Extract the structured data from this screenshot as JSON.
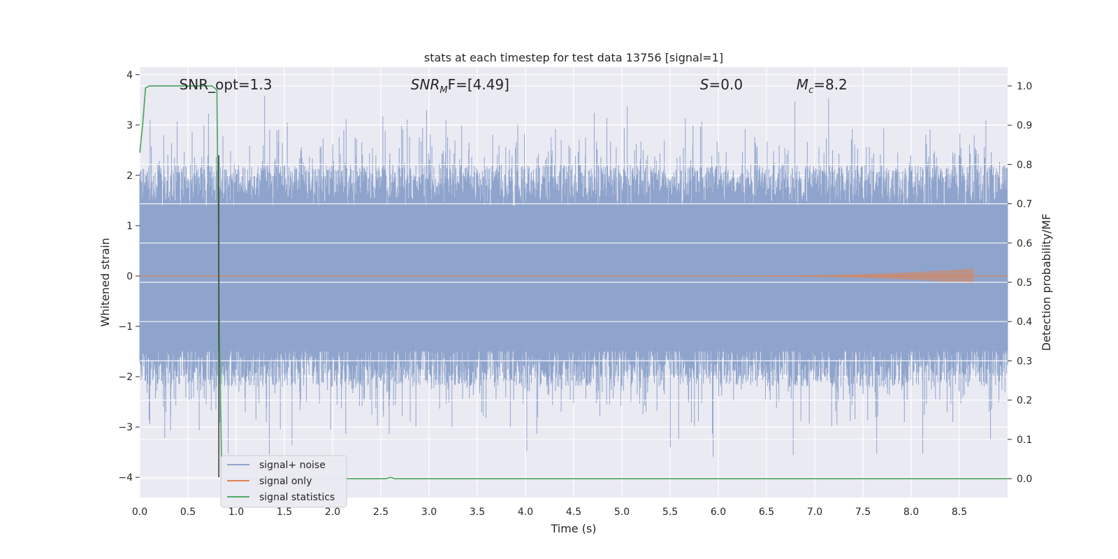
{
  "chart_data": {
    "type": "line",
    "title": "stats at each timestep for test data 13756 [signal=1]",
    "xlabel": "Time (s)",
    "ylabel": "Whitened strain",
    "y2label": "Detection probability/MF",
    "xlim": [
      0.0,
      9.0
    ],
    "ylim": [
      -4.4,
      4.15
    ],
    "y2lim": [
      -0.048,
      1.048
    ],
    "x_ticks": [
      0.0,
      0.5,
      1.0,
      1.5,
      2.0,
      2.5,
      3.0,
      3.5,
      4.0,
      4.5,
      5.0,
      5.5,
      6.0,
      6.5,
      7.0,
      7.5,
      8.0,
      8.5
    ],
    "x_tick_labels": [
      "0.0",
      "0.5",
      "1.0",
      "1.5",
      "2.0",
      "2.5",
      "3.0",
      "3.5",
      "4.0",
      "4.5",
      "5.0",
      "5.5",
      "6.0",
      "6.5",
      "7.0",
      "7.5",
      "8.0",
      "8.5"
    ],
    "y_ticks": [
      4,
      3,
      2,
      1,
      0,
      -1,
      -2,
      -3,
      -4
    ],
    "y_tick_labels": [
      "4",
      "3",
      "2",
      "1",
      "0",
      "−1",
      "−2",
      "−3",
      "−4"
    ],
    "y2_ticks": [
      1.0,
      0.9,
      0.8,
      0.7,
      0.6,
      0.5,
      0.4,
      0.3,
      0.2,
      0.1,
      0.0
    ],
    "y2_tick_labels": [
      "1.0",
      "0.9",
      "0.8",
      "0.7",
      "0.6",
      "0.5",
      "0.4",
      "0.3",
      "0.2",
      "0.1",
      "0.0"
    ],
    "grid": true,
    "annotations": [
      {
        "text": "SNR_opt=1.3",
        "x": 0.2,
        "y": 3.8
      },
      {
        "text": "SNR",
        "sub": "M",
        "suffix": "F=[4.49]",
        "x": 2.6,
        "y": 3.8,
        "italic": true
      },
      {
        "text": "S",
        "suffix": "=0.0",
        "x": 5.6,
        "y": 3.8,
        "italic": true
      },
      {
        "text": "M",
        "sub": "c",
        "suffix": "=8.2",
        "x": 6.6,
        "y": 3.8,
        "italic": true
      }
    ],
    "vline": {
      "x": 0.82,
      "y_from": -4.0,
      "y_to": 2.4,
      "color": "#444444"
    },
    "series": [
      {
        "name": "signal+ noise",
        "color": "#8fa4cc",
        "axis": "left",
        "kind": "noise",
        "band_low": -1.5,
        "band_high": 1.4,
        "typical_peak": 2.3,
        "max": 3.8,
        "min": -4.0
      },
      {
        "name": "signal only",
        "color": "#dd8452",
        "axis": "left",
        "kind": "chirp",
        "start": 5.5,
        "end": 8.65,
        "peak_amplitude": 0.15
      },
      {
        "name": "signal statistics",
        "color": "#55a868",
        "axis": "right",
        "points": [
          [
            0.0,
            0.83
          ],
          [
            0.03,
            0.9
          ],
          [
            0.06,
            0.995
          ],
          [
            0.1,
            1.0
          ],
          [
            0.75,
            1.0
          ],
          [
            0.8,
            0.99
          ],
          [
            0.82,
            0.5
          ],
          [
            0.85,
            0.0
          ],
          [
            2.55,
            0.0
          ],
          [
            2.6,
            0.003
          ],
          [
            2.65,
            0.0
          ],
          [
            9.0,
            0.0
          ]
        ]
      }
    ],
    "legend": {
      "position": "lower-left",
      "entries": [
        "signal+ noise",
        "signal only",
        "signal statistics"
      ]
    }
  }
}
